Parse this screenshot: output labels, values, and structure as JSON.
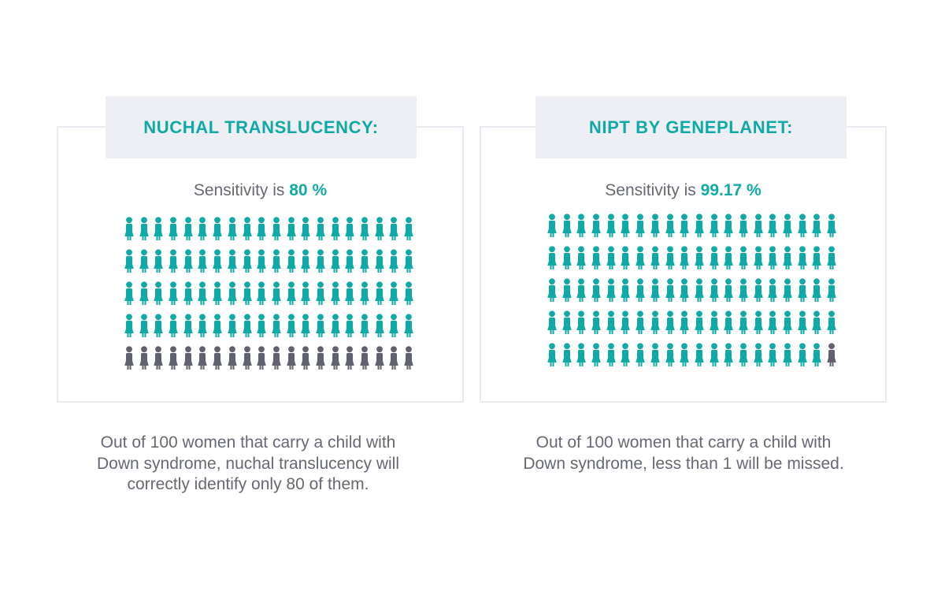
{
  "colors": {
    "accent": "#10aaa6",
    "muted": "#5f616e",
    "title_bg": "#eeeff4",
    "text": "#666875"
  },
  "icons": {
    "person": "person-icon"
  },
  "chart_data": [
    {
      "type": "table",
      "title": "NUCHAL TRANSLUCENCY:",
      "sensitivity_label": "Sensitivity is",
      "sensitivity_value": "80 %",
      "total": 100,
      "marked": 80,
      "columns": 20,
      "description_lines": [
        "Out of 100 women that carry a child with",
        "Down syndrome, nuchal translucency will",
        "correctly identify only 80 of them."
      ]
    },
    {
      "type": "table",
      "title": "NIPT BY GENEPLANET:",
      "sensitivity_label": "Sensitivity is",
      "sensitivity_value": "99.17 %",
      "total": 100,
      "marked": 99.17,
      "columns": 20,
      "description_lines": [
        "Out of 100 women that carry a child with",
        "Down syndrome, less than 1 will be missed."
      ]
    }
  ]
}
